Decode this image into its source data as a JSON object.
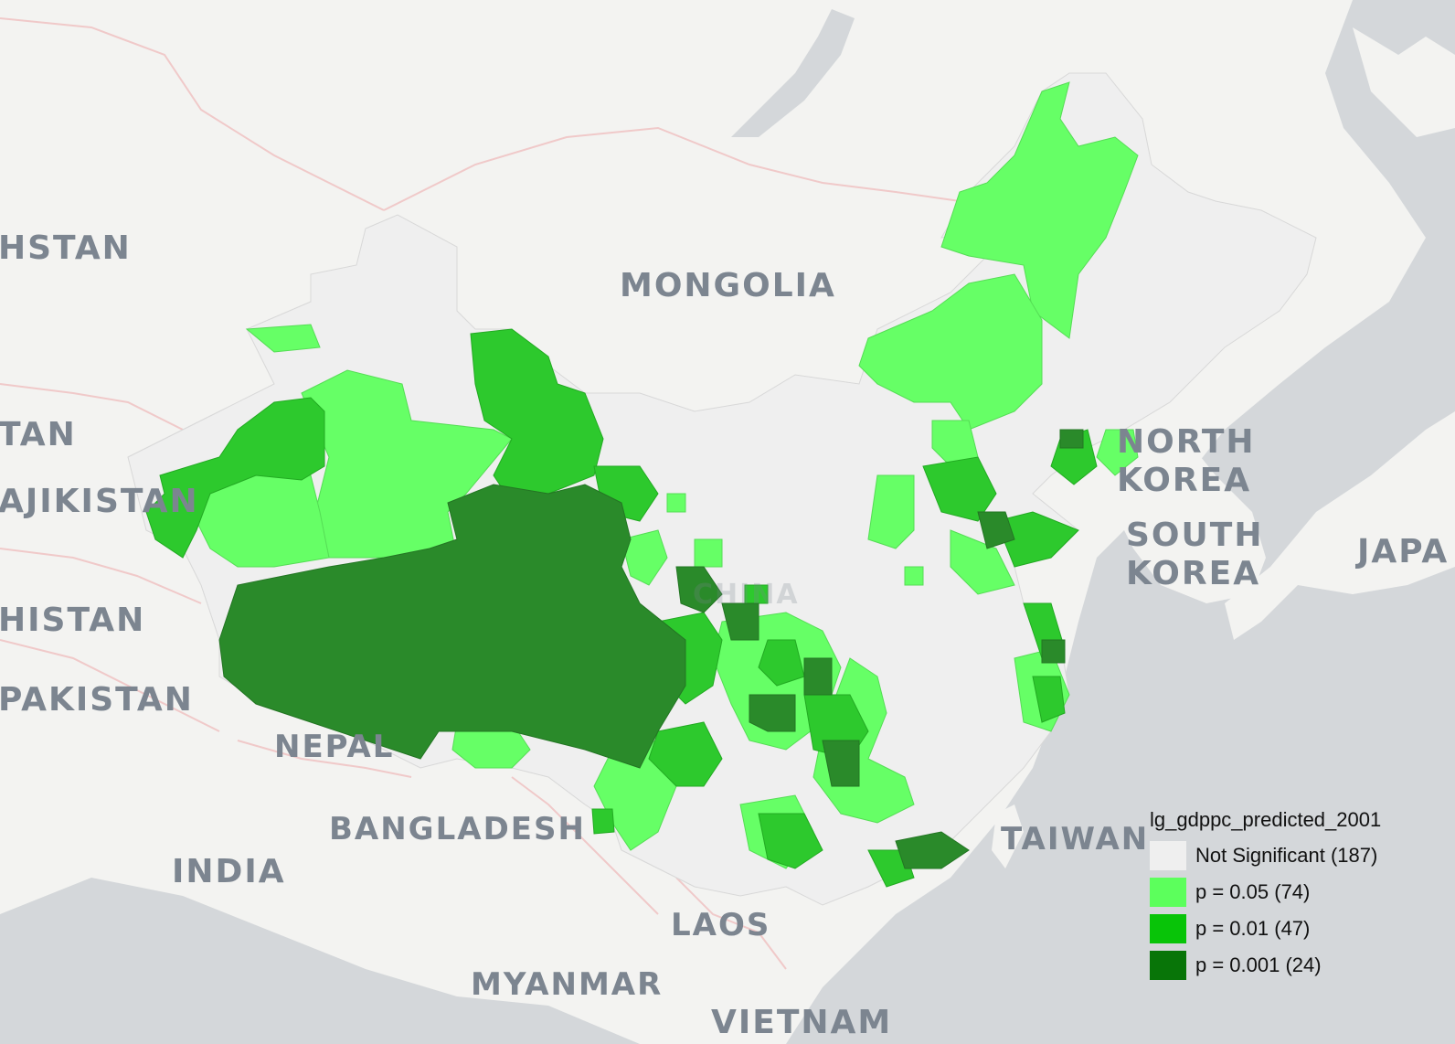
{
  "map": {
    "country_labels": [
      "HSTAN",
      "TAN",
      "AJIKISTAN",
      "HISTAN",
      "PAKISTAN",
      "NEPAL",
      "BANGLADESH",
      "INDIA",
      "MONGOLIA",
      "NORTH KOREA",
      "SOUTH KOREA",
      "JAPA",
      "TAIWAN",
      "LAOS",
      "MYANMAR",
      "VIETNAM",
      "CHINA"
    ],
    "colors": {
      "not_significant": "#efefef",
      "p005": "#66ff66",
      "p001": "#2dc92d",
      "p0001": "#2a8a2a",
      "land": "#f3f3f1",
      "water": "#d4d7da",
      "border": "#f0c9c9"
    }
  },
  "legend": {
    "title": "lg_gdppc_predicted_2001",
    "items": [
      {
        "label": "Not Significant (187)",
        "color": "#efefef"
      },
      {
        "label": "p = 0.05 (74)",
        "color": "#5cff5c"
      },
      {
        "label": "p = 0.01 (47)",
        "color": "#08c408"
      },
      {
        "label": "p = 0.001 (24)",
        "color": "#087508"
      }
    ]
  }
}
